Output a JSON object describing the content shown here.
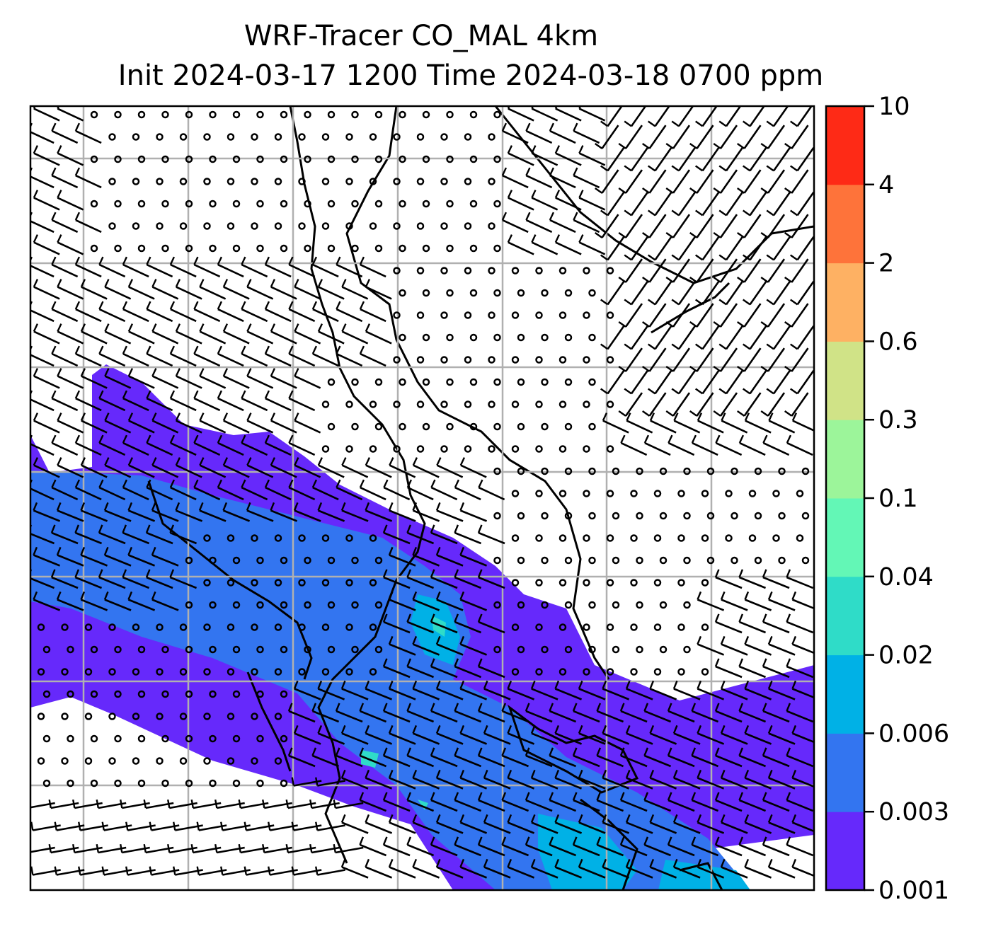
{
  "chart_data": {
    "type": "map",
    "title_line1": "WRF-Tracer CO_MAL 4km",
    "title_line2": "Init 2024-03-17 1200 Time 2024-03-18 0700 ppm",
    "variable": "CO tracer concentration (ppm) with wind barbs",
    "grid": true,
    "colorbar": {
      "placement": "right",
      "ticks": [
        "0.001",
        "0.003",
        "0.006",
        "0.02",
        "0.04",
        "0.1",
        "0.3",
        "0.6",
        "2",
        "4",
        "10"
      ],
      "colors": [
        "#6629fb",
        "#3375f0",
        "#00b1e6",
        "#2fdcc8",
        "#63f7b6",
        "#9cf59a",
        "#d0e387",
        "#feb163",
        "#fe733a",
        "#fe2a16"
      ]
    }
  }
}
